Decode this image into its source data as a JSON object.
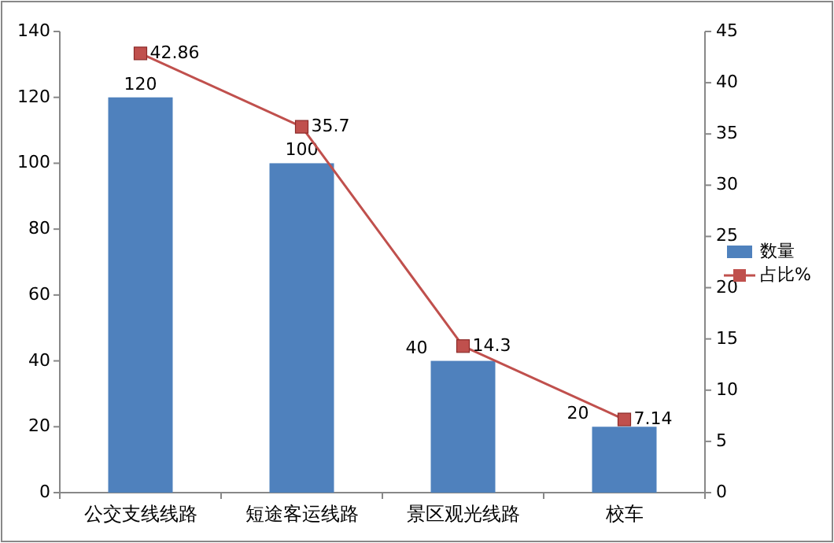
{
  "chart_data": {
    "type": "bar",
    "categories": [
      "公交支线线路",
      "短途客运线路",
      "景区观光线路",
      "校车"
    ],
    "series": [
      {
        "name": "数量",
        "color": "#4f81bd",
        "values": [
          120,
          100,
          40,
          20
        ]
      },
      {
        "name": "占比%",
        "type": "line",
        "axis": "y2",
        "color": "#c0504d",
        "values": [
          42.86,
          35.7,
          14.3,
          7.14
        ]
      }
    ],
    "ylim": [
      0,
      140
    ],
    "yticks": [
      0,
      20,
      40,
      60,
      80,
      100,
      120,
      140
    ],
    "y2lim": [
      0,
      45
    ],
    "y2ticks": [
      0,
      5,
      10,
      15,
      20,
      25,
      30,
      35,
      40,
      45
    ],
    "data_labels": true,
    "legend": "right",
    "marker": "square",
    "line_style": "solid",
    "grid": false
  }
}
